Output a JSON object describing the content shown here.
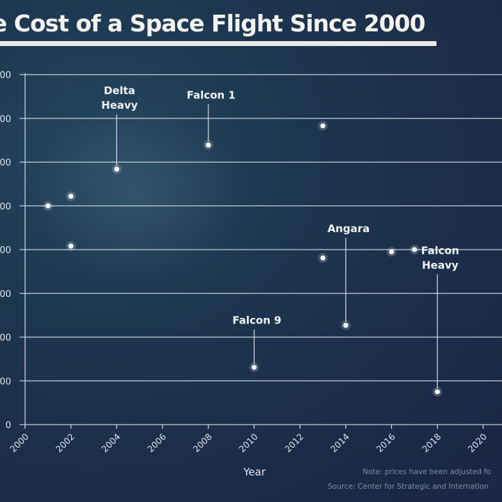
{
  "chart_data": {
    "type": "scatter",
    "title": "e Cost of a Space Flight Since 2000",
    "xlabel": "Year",
    "ylabel": "",
    "xlim": [
      2000,
      2021
    ],
    "ylim": [
      0,
      8
    ],
    "x_ticks": [
      2000,
      2002,
      2004,
      2006,
      2008,
      2010,
      2012,
      2014,
      2016,
      2018,
      2020
    ],
    "x_tick_labels": [
      "2000",
      "2002",
      "2004",
      "2006",
      "2008",
      "2010",
      "2012",
      "2014",
      "2016",
      "2018",
      "2020"
    ],
    "y_ticks": [
      0,
      1,
      2,
      3,
      4,
      5,
      6,
      7,
      8
    ],
    "y_tick_labels": [
      "0",
      "00",
      "00",
      "00",
      "00",
      "00",
      "00",
      "00",
      "00"
    ],
    "grid": true,
    "points": [
      {
        "x": 2001,
        "y": 5.0,
        "label": ""
      },
      {
        "x": 2002,
        "y": 5.22,
        "label": ""
      },
      {
        "x": 2002,
        "y": 4.08,
        "label": ""
      },
      {
        "x": 2004,
        "y": 5.84,
        "label": "Delta Heavy"
      },
      {
        "x": 2008,
        "y": 6.39,
        "label": "Falcon 1"
      },
      {
        "x": 2010,
        "y": 1.31,
        "label": "Falcon 9"
      },
      {
        "x": 2013,
        "y": 6.83,
        "label": ""
      },
      {
        "x": 2013,
        "y": 3.81,
        "label": ""
      },
      {
        "x": 2014,
        "y": 2.27,
        "label": "Angara"
      },
      {
        "x": 2016,
        "y": 3.95,
        "label": ""
      },
      {
        "x": 2017,
        "y": 4.0,
        "label": ""
      },
      {
        "x": 2018,
        "y": 0.75,
        "label": "Falcon Heavy"
      }
    ],
    "annotations": [
      {
        "lines": [
          "Delta",
          "Heavy"
        ],
        "x": 2004,
        "y_text": 7.55
      },
      {
        "lines": [
          "Falcon 1"
        ],
        "x": 2008,
        "y_text": 7.45
      },
      {
        "lines": [
          "Falcon 9"
        ],
        "x": 2010,
        "y_text": 2.3
      },
      {
        "lines": [
          "Angara"
        ],
        "x": 2014,
        "y_text": 4.4
      },
      {
        "lines": [
          "Falcon",
          "Heavy"
        ],
        "x": 2018,
        "y_text": 3.9
      }
    ]
  },
  "footer": {
    "note": "Note: prices have been adjusted fo",
    "source": "Source: Center for Strategic and Internation"
  }
}
